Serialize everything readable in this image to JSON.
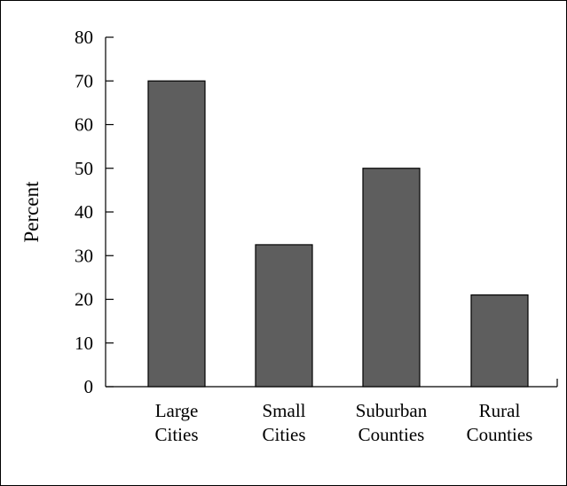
{
  "chart_data": {
    "type": "bar",
    "categories": [
      [
        "Large",
        "Cities"
      ],
      [
        "Small",
        "Cities"
      ],
      [
        "Suburban",
        "Counties"
      ],
      [
        "Rural",
        "Counties"
      ]
    ],
    "values": [
      70,
      32.5,
      50,
      21
    ],
    "ylabel": "Percent",
    "xlabel": "",
    "title": "",
    "ylim": [
      0,
      80
    ],
    "yticks": [
      0,
      10,
      20,
      30,
      40,
      50,
      60,
      70,
      80
    ],
    "grid": false,
    "legend": "none",
    "colors": {
      "bar": "#5e5e5e",
      "bar_stroke": "#000000",
      "axis": "#000000"
    }
  }
}
